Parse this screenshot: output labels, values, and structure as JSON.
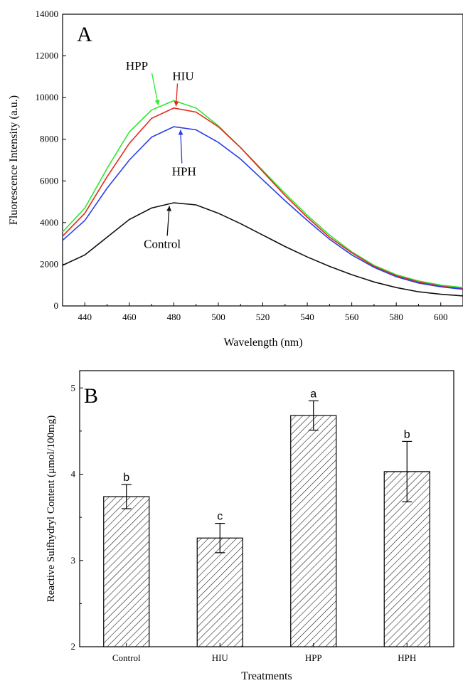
{
  "chart_data": [
    {
      "type": "line",
      "panel_label": "A",
      "xlabel": "Wavelength (nm)",
      "ylabel": "Fluorescence Intensity (a.u.)",
      "xlim": [
        430,
        610
      ],
      "ylim": [
        0,
        14000
      ],
      "xticks": [
        440,
        460,
        480,
        500,
        520,
        540,
        560,
        580,
        600
      ],
      "yticks": [
        0,
        2000,
        4000,
        6000,
        8000,
        10000,
        12000,
        14000
      ],
      "grid": false,
      "x": [
        430,
        440,
        450,
        460,
        470,
        480,
        490,
        500,
        510,
        520,
        530,
        540,
        550,
        560,
        570,
        580,
        590,
        600,
        610
      ],
      "series": [
        {
          "name": "HPP",
          "color": "#2ee82e",
          "values": [
            3550,
            4700,
            6600,
            8350,
            9400,
            9850,
            9500,
            8650,
            7600,
            6500,
            5400,
            4350,
            3400,
            2600,
            1950,
            1500,
            1200,
            1000,
            880
          ]
        },
        {
          "name": "HIU",
          "color": "#e8261c",
          "values": [
            3350,
            4450,
            6200,
            7800,
            9000,
            9500,
            9300,
            8600,
            7600,
            6450,
            5300,
            4250,
            3300,
            2550,
            1900,
            1450,
            1150,
            950,
            830
          ]
        },
        {
          "name": "HPH",
          "color": "#2a3fe8",
          "values": [
            3150,
            4100,
            5650,
            7000,
            8100,
            8600,
            8450,
            7850,
            7050,
            6050,
            5050,
            4100,
            3200,
            2450,
            1850,
            1400,
            1100,
            920,
            800
          ]
        },
        {
          "name": "Control",
          "color": "#111111",
          "values": [
            1950,
            2450,
            3300,
            4150,
            4700,
            4950,
            4850,
            4450,
            3950,
            3400,
            2850,
            2350,
            1900,
            1500,
            1150,
            880,
            680,
            560,
            480
          ]
        }
      ],
      "annotations": [
        {
          "text": "HPP",
          "series": "HPP",
          "x": 473
        },
        {
          "text": "HIU",
          "series": "HIU",
          "x": 481
        },
        {
          "text": "HPH",
          "series": "HPH",
          "x": 483
        },
        {
          "text": "Control",
          "series": "Control",
          "x": 478
        }
      ]
    },
    {
      "type": "bar",
      "panel_label": "B",
      "xlabel": "Treatments",
      "ylabel": "Reactive Sulfhydryl Content (μmol/100mg)",
      "ylim": [
        2,
        5.2
      ],
      "yticks": [
        2,
        3,
        4,
        5
      ],
      "grid": false,
      "categories": [
        "Control",
        "HIU",
        "HPP",
        "HPH"
      ],
      "values": [
        3.74,
        3.26,
        4.68,
        4.03
      ],
      "errors": [
        0.14,
        0.17,
        0.17,
        0.35
      ],
      "significance": [
        "b",
        "c",
        "a",
        "b"
      ],
      "fill": "diagonal hatch"
    }
  ]
}
